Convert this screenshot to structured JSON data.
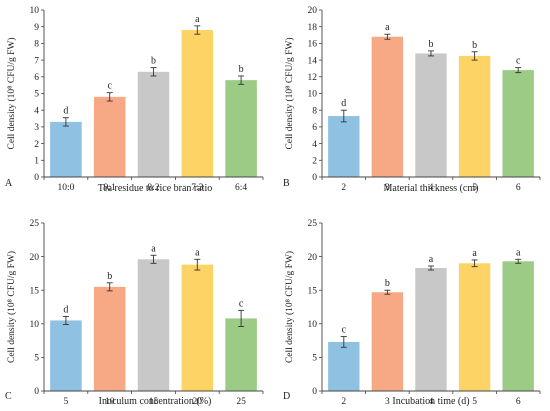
{
  "colors": {
    "blue": "#8FC1E3",
    "orange": "#F7A985",
    "gray": "#C8C8C8",
    "yellow": "#FDD365",
    "green": "#9BCB85",
    "axis": "#444444",
    "text": "#222222"
  },
  "chart_data": [
    {
      "type": "bar",
      "panel_label": "A",
      "categories": [
        "10:0",
        "9:1",
        "8:2",
        "7:3",
        "6:4"
      ],
      "values": [
        3.3,
        4.8,
        6.3,
        8.8,
        5.8
      ],
      "errors": [
        0.25,
        0.25,
        0.25,
        0.25,
        0.25
      ],
      "letters": [
        "d",
        "c",
        "b",
        "a",
        "b"
      ],
      "colors": [
        "#8FC1E3",
        "#F7A985",
        "#C8C8C8",
        "#FDD365",
        "#9BCB85"
      ],
      "xlabel": "Tea residue to rice bran ratio",
      "ylabel": "Cell density (10⁸ CFU/g FW)",
      "ylim": [
        0,
        10
      ],
      "yticks": [
        0,
        1,
        2,
        3,
        4,
        5,
        6,
        7,
        8,
        9,
        10
      ]
    },
    {
      "type": "bar",
      "panel_label": "B",
      "categories": [
        "2",
        "3",
        "4",
        "5",
        "6"
      ],
      "values": [
        7.3,
        16.8,
        14.8,
        14.5,
        12.8
      ],
      "errors": [
        0.7,
        0.3,
        0.3,
        0.5,
        0.3
      ],
      "letters": [
        "d",
        "a",
        "b",
        "b",
        "c"
      ],
      "colors": [
        "#8FC1E3",
        "#F7A985",
        "#C8C8C8",
        "#FDD365",
        "#9BCB85"
      ],
      "xlabel": "Material thickness (cm)",
      "ylabel": "Cell density (10⁸ CFU/g FW)",
      "ylim": [
        0,
        20
      ],
      "yticks": [
        0,
        2,
        4,
        6,
        8,
        10,
        12,
        14,
        16,
        18,
        20
      ]
    },
    {
      "type": "bar",
      "panel_label": "C",
      "categories": [
        "5",
        "10",
        "15",
        "20",
        "25"
      ],
      "values": [
        10.5,
        15.5,
        19.6,
        18.8,
        10.8
      ],
      "errors": [
        0.6,
        0.6,
        0.6,
        0.8,
        1.2
      ],
      "letters": [
        "d",
        "b",
        "a",
        "a",
        "c"
      ],
      "colors": [
        "#8FC1E3",
        "#F7A985",
        "#C8C8C8",
        "#FDD365",
        "#9BCB85"
      ],
      "xlabel": "Inoculum concentration (%)",
      "ylabel": "Cell density (10⁸ CFU/g FW)",
      "ylim": [
        0,
        25
      ],
      "yticks": [
        0,
        5,
        10,
        15,
        20,
        25
      ]
    },
    {
      "type": "bar",
      "panel_label": "D",
      "categories": [
        "2",
        "3",
        "4",
        "5",
        "6"
      ],
      "values": [
        7.3,
        14.7,
        18.3,
        19.0,
        19.3
      ],
      "errors": [
        0.8,
        0.3,
        0.3,
        0.5,
        0.3
      ],
      "letters": [
        "c",
        "b",
        "a",
        "a",
        "a"
      ],
      "colors": [
        "#8FC1E3",
        "#F7A985",
        "#C8C8C8",
        "#FDD365",
        "#9BCB85"
      ],
      "xlabel": "Incubation time (d)",
      "ylabel": "Cell density (10⁸ CFU/g FW)",
      "ylim": [
        0,
        25
      ],
      "yticks": [
        0,
        5,
        10,
        15,
        20,
        25
      ]
    }
  ]
}
